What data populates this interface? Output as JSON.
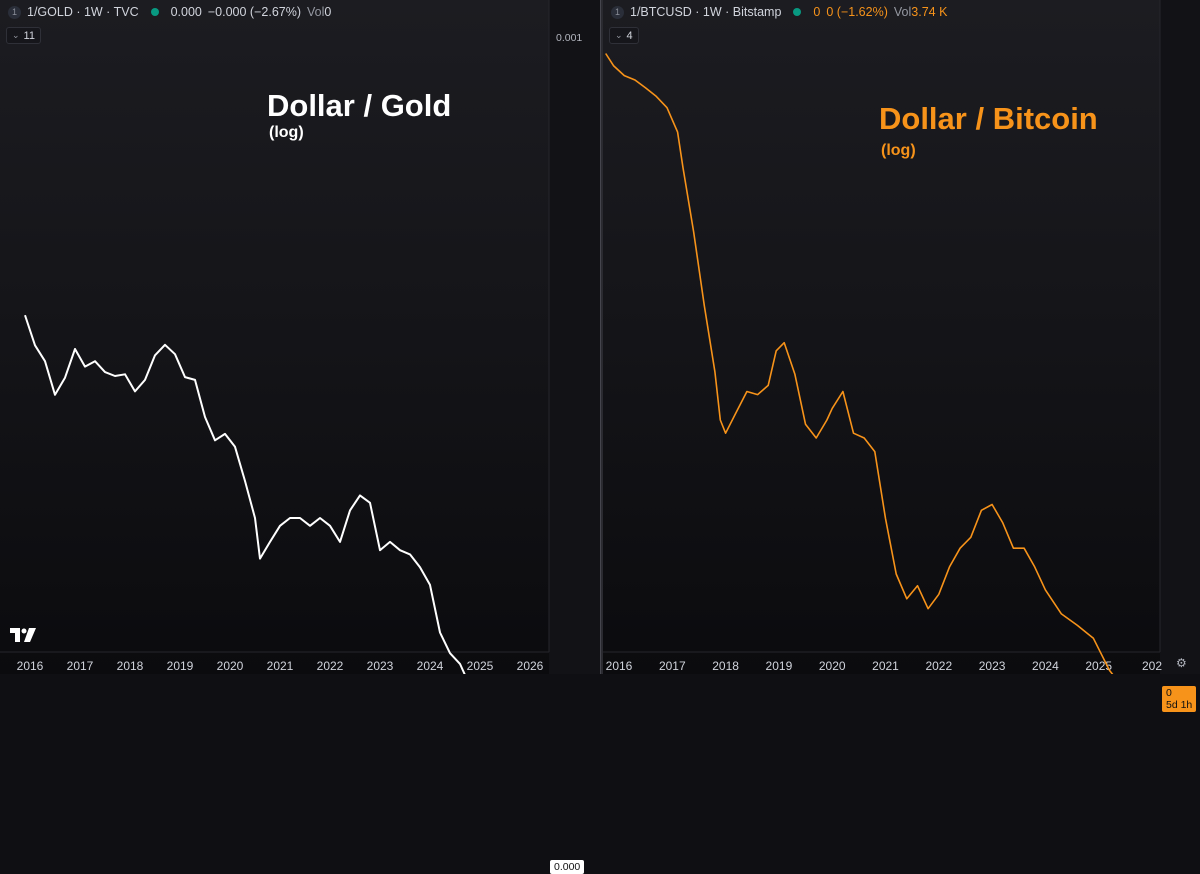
{
  "left": {
    "header": {
      "badge": "1",
      "symbol": "1/GOLD · 1W · TVC",
      "last": "0.000",
      "change": "−0.000 (−2.67%)",
      "vol_label": "Vol",
      "vol_value": "0"
    },
    "collapse_count": "11",
    "annotation": {
      "title": "Dollar / Gold",
      "subtitle": "(log)"
    },
    "scale_top_label": "0.001",
    "last_price_label": "0.000"
  },
  "right": {
    "header": {
      "badge": "1",
      "symbol": "1/BTCUSD · 1W · Bitstamp",
      "last": "0",
      "change": "0 (−1.62%)",
      "vol_label": "Vol",
      "vol_value": "3.74 K"
    },
    "collapse_count": "4",
    "annotation": {
      "title": "Dollar / Bitcoin",
      "subtitle": "(log)"
    },
    "last_price_label": "0",
    "countdown_label": "5d 1h"
  },
  "colors": {
    "gold_line": "#ffffff",
    "btc_line": "#f7931a",
    "up_dot": "#089981",
    "background": "#131317"
  },
  "icons": {
    "brand": "tradingview-logo-icon",
    "settings": "gear-icon"
  },
  "chart_data": [
    {
      "type": "line",
      "ylog": true,
      "x_ticks": [
        "2016",
        "2017",
        "2018",
        "2019",
        "2020",
        "2021",
        "2022",
        "2023",
        "2024",
        "2025",
        "2026"
      ],
      "series": [
        {
          "name": "1/GOLD",
          "x": [
            2015.9,
            2016.1,
            2016.3,
            2016.5,
            2016.7,
            2016.9,
            2017.1,
            2017.3,
            2017.5,
            2017.7,
            2017.9,
            2018.1,
            2018.3,
            2018.5,
            2018.7,
            2018.9,
            2019.1,
            2019.3,
            2019.5,
            2019.7,
            2019.9,
            2020.1,
            2020.3,
            2020.5,
            2020.6,
            2020.8,
            2021.0,
            2021.2,
            2021.4,
            2021.6,
            2021.8,
            2022.0,
            2022.2,
            2022.4,
            2022.6,
            2022.8,
            2023.0,
            2023.2,
            2023.4,
            2023.6,
            2023.8,
            2024.0,
            2024.2,
            2024.4,
            2024.6,
            2024.8,
            2025.0,
            2025.2,
            2025.4,
            2025.6,
            2025.75
          ],
          "y": [
            0.000895,
            0.000835,
            0.000805,
            0.000745,
            0.000775,
            0.000828,
            0.000795,
            0.000805,
            0.000785,
            0.000778,
            0.000781,
            0.000751,
            0.000771,
            0.000816,
            0.000836,
            0.000818,
            0.000776,
            0.000771,
            0.000708,
            0.000671,
            0.000681,
            0.000661,
            0.000611,
            0.000561,
            0.000511,
            0.000531,
            0.000551,
            0.000561,
            0.000561,
            0.000551,
            0.000561,
            0.000551,
            0.000531,
            0.000571,
            0.000591,
            0.000581,
            0.000521,
            0.000531,
            0.000521,
            0.000516,
            0.000501,
            0.000481,
            0.000431,
            0.000411,
            0.000401,
            0.000381,
            0.000371,
            0.000331,
            0.000316,
            0.000301,
            0.000251
          ]
        }
      ]
    },
    {
      "type": "line",
      "ylog": true,
      "x_ticks": [
        "2016",
        "2017",
        "2018",
        "2019",
        "2020",
        "2021",
        "2022",
        "2023",
        "2024",
        "2025",
        "202"
      ],
      "series": [
        {
          "name": "1/BTCUSD",
          "x": [
            2015.75,
            2015.9,
            2016.1,
            2016.3,
            2016.5,
            2016.7,
            2016.9,
            2017.1,
            2017.2,
            2017.4,
            2017.6,
            2017.8,
            2017.9,
            2018.0,
            2018.2,
            2018.4,
            2018.6,
            2018.8,
            2018.95,
            2019.1,
            2019.3,
            2019.5,
            2019.7,
            2019.9,
            2020.0,
            2020.2,
            2020.4,
            2020.6,
            2020.8,
            2021.0,
            2021.2,
            2021.4,
            2021.6,
            2021.8,
            2022.0,
            2022.2,
            2022.4,
            2022.6,
            2022.8,
            2023.0,
            2023.2,
            2023.4,
            2023.6,
            2023.8,
            2024.0,
            2024.3,
            2024.6,
            2024.9,
            2025.2,
            2025.5,
            2025.75
          ],
          "y": [
            0.0044,
            0.0039,
            0.00355,
            0.0034,
            0.00315,
            0.0029,
            0.0026,
            0.00205,
            0.00145,
            0.00078,
            0.00038,
            0.0002,
            0.000125,
            0.00011,
            0.000135,
            0.000165,
            0.00016,
            0.000175,
            0.000245,
            0.000265,
            0.000195,
            0.00012,
            0.000105,
            0.000125,
            0.00014,
            0.000165,
            0.00011,
            0.000105,
            9.2e-05,
            4.8e-05,
            2.8e-05,
            2.2e-05,
            2.5e-05,
            2e-05,
            2.3e-05,
            3e-05,
            3.6e-05,
            4e-05,
            5.2e-05,
            5.5e-05,
            4.6e-05,
            3.6e-05,
            3.6e-05,
            3e-05,
            2.4e-05,
            1.9e-05,
            1.7e-05,
            1.5e-05,
            1.1e-05,
            9e-06,
            8.8e-06
          ]
        }
      ]
    }
  ]
}
